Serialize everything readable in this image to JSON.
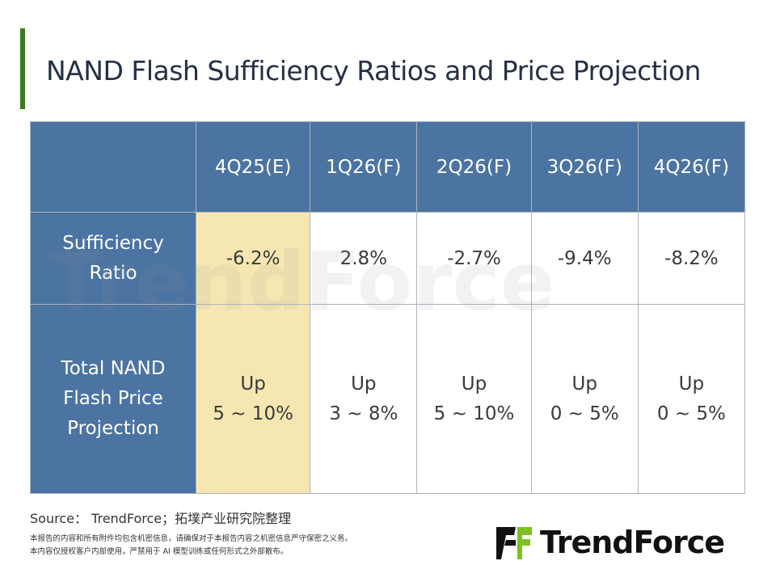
{
  "title": "NAND Flash Sufficiency Ratios and Price Projection",
  "table": {
    "headers": [
      "4Q25(E)",
      "1Q26(F)",
      "2Q26(F)",
      "3Q26(F)",
      "4Q26(F)"
    ],
    "rows": [
      {
        "label": "Sufficiency Ratio",
        "values": [
          "-6.2%",
          "2.8%",
          "-2.7%",
          "-9.4%",
          "-8.2%"
        ]
      },
      {
        "label": "Total NAND Flash Price Projection",
        "values": [
          [
            "Up",
            "5 ~ 10%"
          ],
          [
            "Up",
            "3 ~ 8%"
          ],
          [
            "Up",
            "5 ~ 10%"
          ],
          [
            "Up",
            "0 ~ 5%"
          ],
          [
            "Up",
            "0 ~ 5%"
          ]
        ]
      }
    ]
  },
  "source": "Source： TrendForce；拓墣产业研究院整理",
  "notes": [
    "本报告的内容和所有附件均包含机密信息，请确保对于本报告内容之机密信息严守保密之义务。",
    "本内容仅授权客户内部使用，严禁用于 AI 模型训练或任何形式之外部散布。"
  ],
  "logo": "TrendForce",
  "watermark": "TrendForce",
  "colors": {
    "header": "#4b74a2",
    "highlight": "#f6e7b2",
    "accent": "#3c7a1f"
  }
}
